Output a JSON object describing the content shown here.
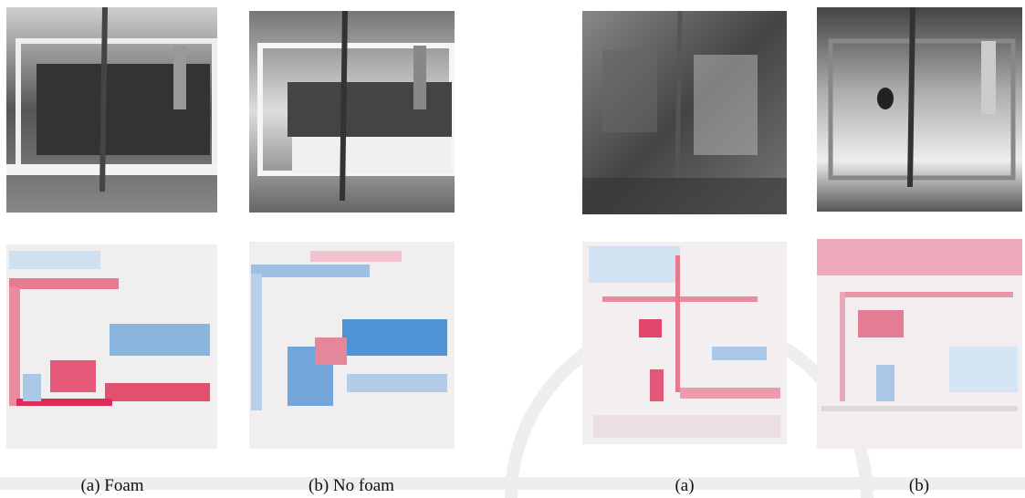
{
  "figures": [
    {
      "caption": "(a) Foam"
    },
    {
      "caption": "(b) No foam"
    },
    {
      "caption": "(a)"
    },
    {
      "caption": "(b)"
    }
  ]
}
